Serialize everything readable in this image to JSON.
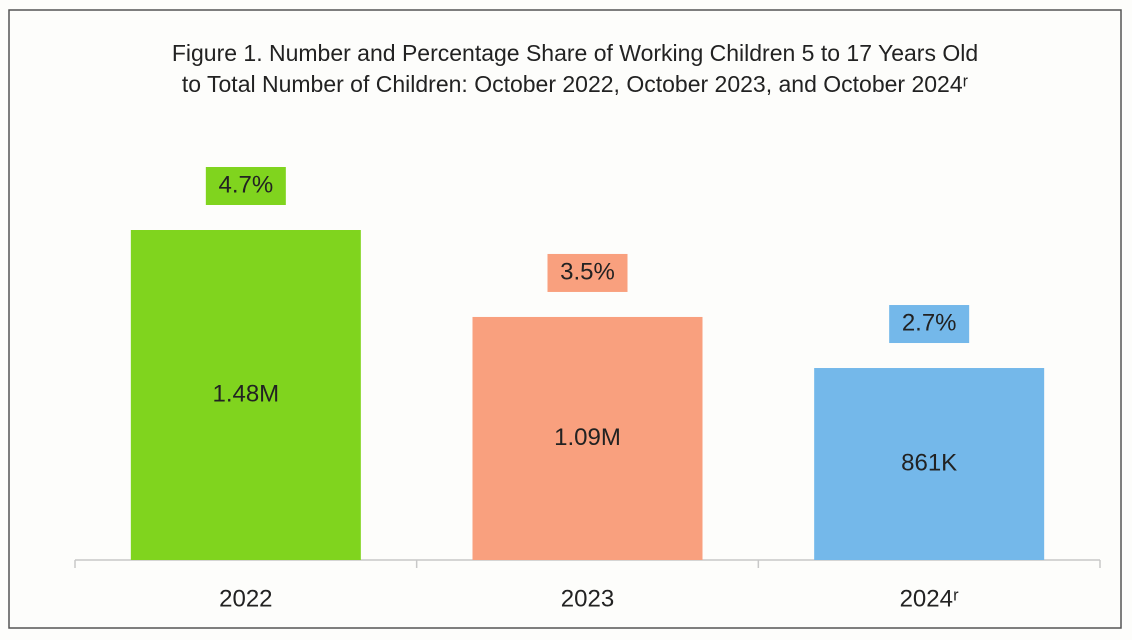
{
  "chart_data": {
    "type": "bar",
    "title": "Figure 1. Number and Percentage Share of Working Children 5 to 17 Years Old to Total Number of Children: October 2022, October 2023, and October 2024ʳ",
    "categories": [
      "2022",
      "2023",
      "2024ʳ"
    ],
    "values": [
      1480000,
      1090000,
      861000
    ],
    "value_labels": [
      "1.48M",
      "1.09M",
      "861K"
    ],
    "percentages": [
      4.7,
      3.5,
      2.7
    ],
    "percentage_labels": [
      "4.7%",
      "3.5%",
      "2.7%"
    ],
    "colors": [
      "#80d41e",
      "#f9a07e",
      "#74b8ea"
    ]
  }
}
